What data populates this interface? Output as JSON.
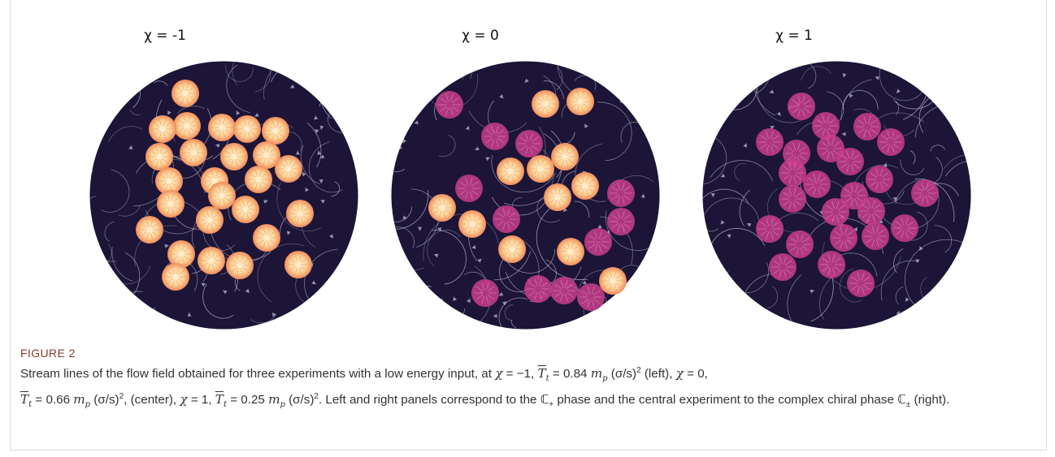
{
  "figure": {
    "label": "FIGURE 2",
    "panels": [
      {
        "title": "χ = -1",
        "particle_type": "orange"
      },
      {
        "title": "χ = 0",
        "particle_type": "mixed"
      },
      {
        "title": "χ = 1",
        "particle_type": "magenta"
      }
    ],
    "caption": {
      "p1": "Stream lines of the flow field obtained for three experiments with a low energy input, at ",
      "chi1": "χ",
      "v1": " = −1, ",
      "T": "T",
      "t": "t",
      "v2": " = 0.84 ",
      "mp": "m",
      "p": "p",
      "unit": " (σ/s)",
      "sq": "2",
      "left": " (left), ",
      "chi2": "χ",
      "v3": " = 0,",
      "v4": " = 0.66 ",
      "center": ", (center), ",
      "chi3": "χ",
      "v5": " = 1, ",
      "v6": " = 0.25 ",
      "tail1": ". Left and right panels correspond to the ",
      "phase1": "ℂ",
      "phase1_sub": "+",
      "tail2": " phase and the central experiment to the complex chiral phase ",
      "phase2": "ℂ",
      "phase2_sub": "±",
      "tail3": " (right)."
    },
    "colors": {
      "disk_bg": "#1c1538",
      "stream": "#c9c4d8",
      "orange_particle": "#fbc98a",
      "magenta_particle": "#c93d8c"
    }
  }
}
